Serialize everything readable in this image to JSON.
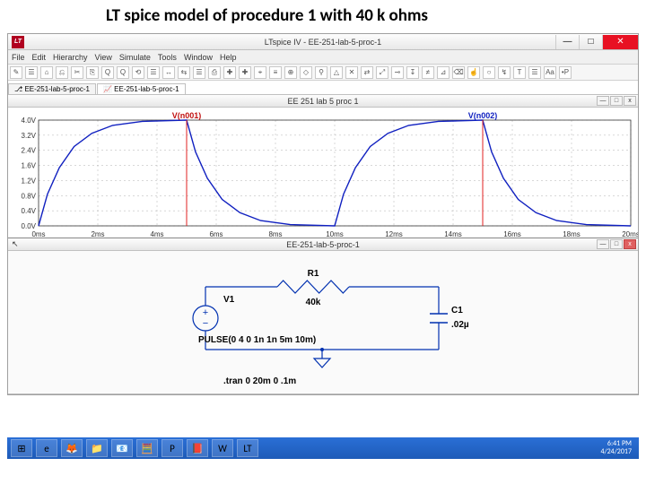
{
  "slide_title": "LT spice model of procedure 1 with 40 k ohms",
  "window": {
    "title": "LTspice IV - EE-251-lab-5-proc-1",
    "app_icon_text": "LT"
  },
  "menu": [
    "File",
    "Edit",
    "Hierarchy",
    "View",
    "Simulate",
    "Tools",
    "Window",
    "Help"
  ],
  "toolbar_icons": [
    "✎",
    "☰",
    "⌂",
    "⎌",
    "✂",
    "⎘",
    "Q",
    "Q",
    "⟲",
    "☰",
    "↔",
    "⇆",
    "☰",
    "⎙",
    "✚",
    "✚",
    "⌖",
    "≡",
    "⊕",
    "◇",
    "⚲",
    "△",
    "✕",
    "⇄",
    "⤢",
    "⊸",
    "↧",
    "≠",
    "⊿",
    "⌫",
    "☝",
    "○",
    "↯",
    "T",
    "☰",
    "Aa",
    "•P"
  ],
  "tabs": [
    {
      "label": "EE-251-lab-5-proc-1",
      "icon": "⎇"
    },
    {
      "label": "EE-251-lab-5-proc-1",
      "icon": "📈",
      "active": true
    }
  ],
  "waveform": {
    "title": "EE 251 lab 5 proc 1",
    "trace1_label": "V(n001)",
    "trace2_label": "V(n002)",
    "y_ticks": [
      "4.0V",
      "3.2V",
      "2.4V",
      "1.6V",
      "1.2V",
      "0.8V",
      "0.4V",
      "0.0V"
    ],
    "x_ticks": [
      "0ms",
      "2ms",
      "4ms",
      "6ms",
      "8ms",
      "10ms",
      "12ms",
      "14ms",
      "16ms",
      "18ms",
      "20ms"
    ],
    "trace_color": "#1020c0",
    "cursor_color": "#e02020",
    "grid_color": "#b0b0b0",
    "axis_color": "#333333",
    "label_color_red": "#c01010",
    "label_color_blue": "#1020c0",
    "xlim_ms": [
      0,
      20
    ],
    "ylim_v": [
      0,
      4.0
    ],
    "series_v_n001": {
      "high_v": 4.0,
      "low_v": 0.0,
      "edges_ms": [
        0,
        5,
        10,
        15,
        20
      ]
    },
    "series_v_n002_points": [
      [
        0.0,
        0.0
      ],
      [
        0.3,
        1.2
      ],
      [
        0.7,
        2.2
      ],
      [
        1.2,
        3.0
      ],
      [
        1.8,
        3.5
      ],
      [
        2.5,
        3.8
      ],
      [
        3.5,
        3.95
      ],
      [
        5.0,
        4.0
      ],
      [
        5.0,
        4.0
      ],
      [
        5.3,
        2.8
      ],
      [
        5.7,
        1.8
      ],
      [
        6.2,
        1.0
      ],
      [
        6.8,
        0.5
      ],
      [
        7.5,
        0.2
      ],
      [
        8.5,
        0.05
      ],
      [
        10.0,
        0.0
      ],
      [
        10.0,
        0.0
      ],
      [
        10.3,
        1.2
      ],
      [
        10.7,
        2.2
      ],
      [
        11.2,
        3.0
      ],
      [
        11.8,
        3.5
      ],
      [
        12.5,
        3.8
      ],
      [
        13.5,
        3.95
      ],
      [
        15.0,
        4.0
      ],
      [
        15.0,
        4.0
      ],
      [
        15.3,
        2.8
      ],
      [
        15.7,
        1.8
      ],
      [
        16.2,
        1.0
      ],
      [
        16.8,
        0.5
      ],
      [
        17.5,
        0.2
      ],
      [
        18.5,
        0.05
      ],
      [
        20.0,
        0.0
      ]
    ],
    "cursors_ms": [
      5,
      15
    ]
  },
  "schematic": {
    "title": "EE-251-lab-5-proc-1",
    "v1_label": "V1",
    "r1_label": "R1",
    "r1_value": "40k",
    "c1_label": "C1",
    "c1_value": ".02µ",
    "pulse_text": "PULSE(0 4 0 1n 1n 5m 10m)",
    "tran_text": ".tran 0 20m 0 .1m",
    "wire_color": "#0030b0",
    "component_color": "#0030b0",
    "text_color": "#000000"
  },
  "taskbar": {
    "icons": [
      "⊞",
      "e",
      "🦊",
      "📁",
      "📧",
      "🧮",
      "P",
      "📕",
      "W",
      "LT"
    ],
    "time": "6:41 PM",
    "date": "4/24/2017"
  }
}
